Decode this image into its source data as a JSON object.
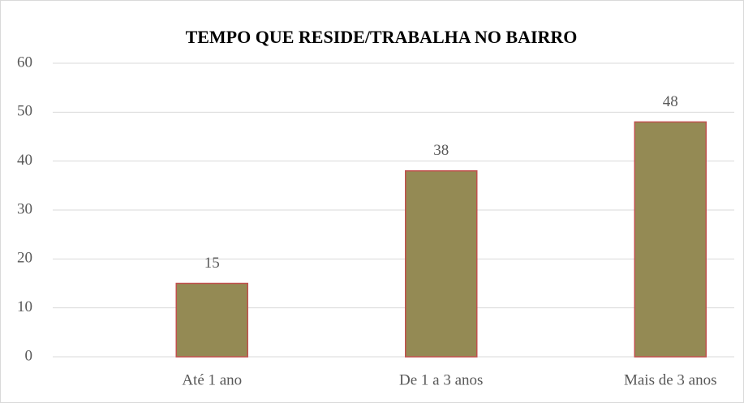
{
  "chart_data": {
    "type": "bar",
    "title": "TEMPO QUE RESIDE/TRABALHA NO BAIRRO",
    "categories": [
      "Até 1 ano",
      "De 1 a 3 anos",
      "Mais de 3 anos"
    ],
    "values": [
      15,
      38,
      48
    ],
    "color": "#948a54",
    "edge_color": "#c0504d",
    "ylim": [
      0,
      60
    ],
    "yticks": [
      0,
      10,
      20,
      30,
      40,
      50,
      60
    ],
    "grid": true
  }
}
